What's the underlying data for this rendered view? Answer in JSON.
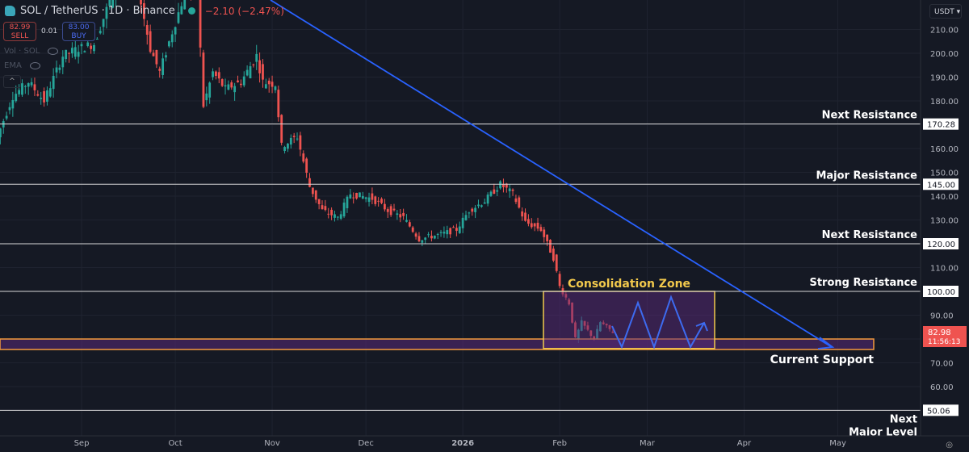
{
  "header": {
    "symbol": "SOL / TetherUS · 1D · Binance",
    "change": "−2.10 (−2.47%)",
    "sell_price": "82.99",
    "sell_label": "SELL",
    "spread": "0.01",
    "buy_price": "83.00",
    "buy_label": "BUY",
    "indicators": [
      "Vol · SOL",
      "EMA"
    ],
    "currency": "USDT"
  },
  "colors": {
    "up": "#26a69a",
    "down": "#ef5350",
    "trendline": "#2962ff",
    "zone_border": "#f2c94c",
    "support_border": "#f59b3d",
    "zone_fill": "#5a2a78"
  },
  "chart_data": {
    "type": "candlestick",
    "title": "SOL / TetherUS · 1D · Binance",
    "ylim": [
      45,
      215
    ],
    "y_ticks": [
      "210.00",
      "200.00",
      "190.00",
      "180.00",
      "160.00",
      "150.00",
      "140.00",
      "130.00",
      "110.00",
      "90.00",
      "70.00",
      "60.00"
    ],
    "x_ticks": [
      {
        "label": "Sep",
        "date": "2025-09-01"
      },
      {
        "label": "Oct",
        "date": "2025-10-01"
      },
      {
        "label": "Nov",
        "date": "2025-11-01"
      },
      {
        "label": "Dec",
        "date": "2025-12-01"
      },
      {
        "label": "2026",
        "date": "2026-01-01"
      },
      {
        "label": "Feb",
        "date": "2026-02-01"
      },
      {
        "label": "Mar",
        "date": "2026-03-01"
      },
      {
        "label": "Apr",
        "date": "2026-04-01"
      },
      {
        "label": "May",
        "date": "2026-05-01"
      }
    ],
    "price_path": [
      [
        "2025-08-05",
        165
      ],
      [
        "2025-08-10",
        182
      ],
      [
        "2025-08-15",
        188
      ],
      [
        "2025-08-20",
        180
      ],
      [
        "2025-08-26",
        199
      ],
      [
        "2025-08-31",
        202
      ],
      [
        "2025-09-05",
        204
      ],
      [
        "2025-09-10",
        222
      ],
      [
        "2025-09-17",
        240
      ],
      [
        "2025-09-23",
        202
      ],
      [
        "2025-09-26",
        192
      ],
      [
        "2025-09-30",
        209
      ],
      [
        "2025-10-04",
        225
      ],
      [
        "2025-10-08",
        225
      ],
      [
        "2025-10-10",
        178
      ],
      [
        "2025-10-13",
        192
      ],
      [
        "2025-10-17",
        185
      ],
      [
        "2025-10-22",
        188
      ],
      [
        "2025-10-27",
        199
      ],
      [
        "2025-10-29",
        188
      ],
      [
        "2025-11-02",
        187
      ],
      [
        "2025-11-04",
        161
      ],
      [
        "2025-11-09",
        165
      ],
      [
        "2025-11-13",
        144
      ],
      [
        "2025-11-17",
        134
      ],
      [
        "2025-11-22",
        131
      ],
      [
        "2025-11-26",
        141
      ],
      [
        "2025-12-03",
        139
      ],
      [
        "2025-12-08",
        134
      ],
      [
        "2025-12-13",
        131
      ],
      [
        "2025-12-18",
        122
      ],
      [
        "2025-12-25",
        124
      ],
      [
        "2025-12-30",
        126
      ],
      [
        "2026-01-03",
        134
      ],
      [
        "2026-01-08",
        138
      ],
      [
        "2026-01-13",
        145
      ],
      [
        "2026-01-17",
        141
      ],
      [
        "2026-01-21",
        129
      ],
      [
        "2026-01-26",
        126
      ],
      [
        "2026-01-30",
        114
      ],
      [
        "2026-02-01",
        102
      ],
      [
        "2026-02-04",
        95
      ],
      [
        "2026-02-06",
        80
      ],
      [
        "2026-02-08",
        87
      ],
      [
        "2026-02-12",
        80
      ],
      [
        "2026-02-14",
        87
      ],
      [
        "2026-02-18",
        83
      ]
    ],
    "levels": [
      {
        "price": 170.28,
        "label": "Next Resistance",
        "tag": "170.28"
      },
      {
        "price": 145.0,
        "label": "Major Resistance",
        "tag": "145.00"
      },
      {
        "price": 120.0,
        "label": "Next Resistance",
        "tag": "120.00"
      },
      {
        "price": 100.0,
        "label": "Strong Resistance",
        "tag": "100.00"
      },
      {
        "price": 50.06,
        "label": "Next Major Level",
        "tag": "50.06"
      }
    ],
    "support_zone": {
      "label": "Current Support",
      "low": 75.6,
      "high": 80
    },
    "consolidation_zone": {
      "label": "Consolidation Zone",
      "low": 76,
      "high": 100
    },
    "last_price": {
      "value": "82.98",
      "countdown": "11:56:13"
    }
  }
}
